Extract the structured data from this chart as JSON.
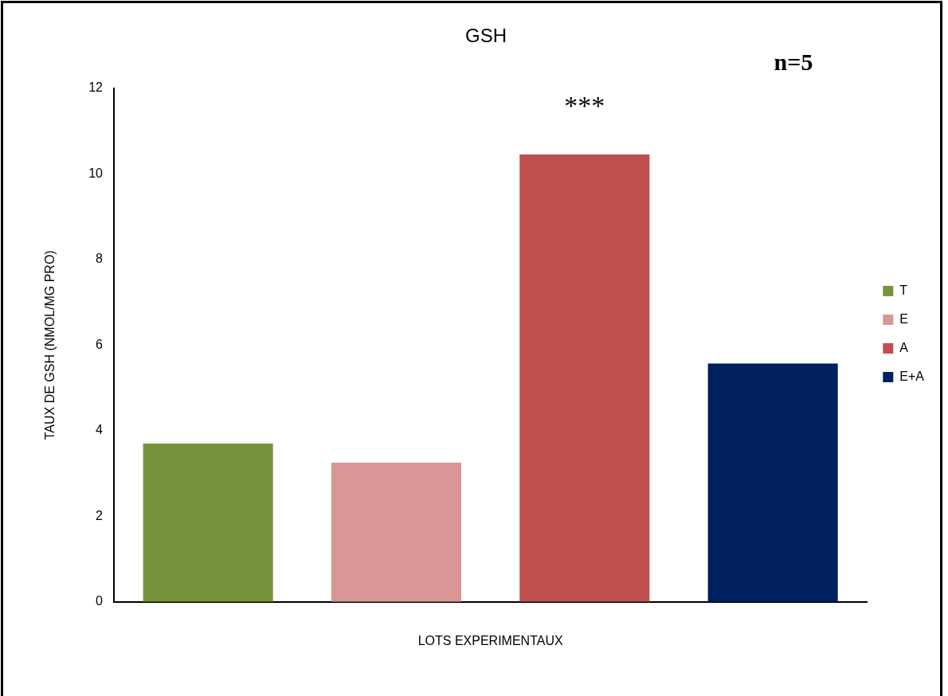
{
  "chart_data": {
    "type": "bar",
    "title": "GSH",
    "xlabel": "LOTS EXPERIMENTAUX",
    "ylabel": "TAUX DE GSH (NMOL/MG PRO)",
    "categories": [
      null
    ],
    "series": [
      {
        "name": "T",
        "color": "#77933c",
        "values": [
          3.7
        ]
      },
      {
        "name": "E",
        "color": "#d99694",
        "values": [
          3.25
        ]
      },
      {
        "name": "A",
        "color": "#c0504d",
        "values": [
          10.45
        ]
      },
      {
        "name": "E+A",
        "color": "#002060",
        "values": [
          5.57
        ]
      }
    ],
    "ylim": [
      0,
      12
    ],
    "yticks": [
      0,
      2,
      4,
      6,
      8,
      10,
      12
    ],
    "grid": false,
    "legend": "right",
    "annotations": [
      "n=5",
      "***"
    ]
  }
}
